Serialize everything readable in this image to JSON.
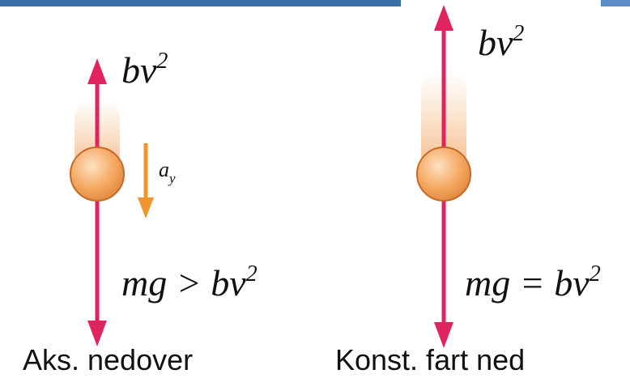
{
  "panels": [
    {
      "force_up": {
        "base": "bv",
        "exponent": "2"
      },
      "acceleration": {
        "base": "a",
        "subscript": "y"
      },
      "force_down": {
        "base": "mg > bv",
        "exponent": "2"
      },
      "caption": "Aks. nedover"
    },
    {
      "force_up": {
        "base": "bv",
        "exponent": "2"
      },
      "force_down": {
        "base": "mg = bv",
        "exponent": "2"
      },
      "caption": "Konst. fart ned"
    }
  ]
}
